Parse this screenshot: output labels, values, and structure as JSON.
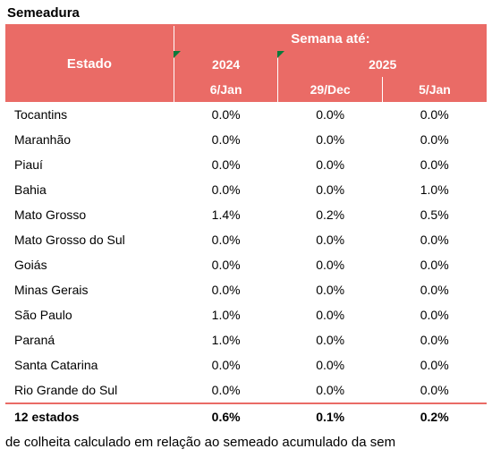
{
  "title": "Semeadura",
  "colors": {
    "header_bg": "#ea6b66",
    "header_text": "#ffffff",
    "border": "#ea6b66",
    "tick": "#0a7a3b",
    "text": "#000000",
    "background": "#ffffff"
  },
  "header": {
    "estado": "Estado",
    "semana_ate": "Semana até:",
    "year_2024": "2024",
    "year_2025": "2025",
    "col_6jan": "6/Jan",
    "col_29dec": "29/Dec",
    "col_5jan": "5/Jan"
  },
  "rows": [
    {
      "state": "Tocantins",
      "v2024_6jan": "0.0%",
      "v2025_29dec": "0.0%",
      "v2025_5jan": "0.0%"
    },
    {
      "state": "Maranhão",
      "v2024_6jan": "0.0%",
      "v2025_29dec": "0.0%",
      "v2025_5jan": "0.0%"
    },
    {
      "state": "Piauí",
      "v2024_6jan": "0.0%",
      "v2025_29dec": "0.0%",
      "v2025_5jan": "0.0%"
    },
    {
      "state": "Bahia",
      "v2024_6jan": "0.0%",
      "v2025_29dec": "0.0%",
      "v2025_5jan": "1.0%"
    },
    {
      "state": "Mato Grosso",
      "v2024_6jan": "1.4%",
      "v2025_29dec": "0.2%",
      "v2025_5jan": "0.5%"
    },
    {
      "state": "Mato Grosso do Sul",
      "v2024_6jan": "0.0%",
      "v2025_29dec": "0.0%",
      "v2025_5jan": "0.0%"
    },
    {
      "state": "Goiás",
      "v2024_6jan": "0.0%",
      "v2025_29dec": "0.0%",
      "v2025_5jan": "0.0%"
    },
    {
      "state": "Minas Gerais",
      "v2024_6jan": "0.0%",
      "v2025_29dec": "0.0%",
      "v2025_5jan": "0.0%"
    },
    {
      "state": "São Paulo",
      "v2024_6jan": "1.0%",
      "v2025_29dec": "0.0%",
      "v2025_5jan": "0.0%"
    },
    {
      "state": "Paraná",
      "v2024_6jan": "1.0%",
      "v2025_29dec": "0.0%",
      "v2025_5jan": "0.0%"
    },
    {
      "state": "Santa Catarina",
      "v2024_6jan": "0.0%",
      "v2025_29dec": "0.0%",
      "v2025_5jan": "0.0%"
    },
    {
      "state": "Rio Grande do Sul",
      "v2024_6jan": "0.0%",
      "v2025_29dec": "0.0%",
      "v2025_5jan": "0.0%"
    }
  ],
  "total": {
    "label": "12 estados",
    "v2024_6jan": "0.6%",
    "v2025_29dec": "0.1%",
    "v2025_5jan": "0.2%"
  },
  "footnote": "de colheita calculado em relação ao semeado acumulado da sem"
}
